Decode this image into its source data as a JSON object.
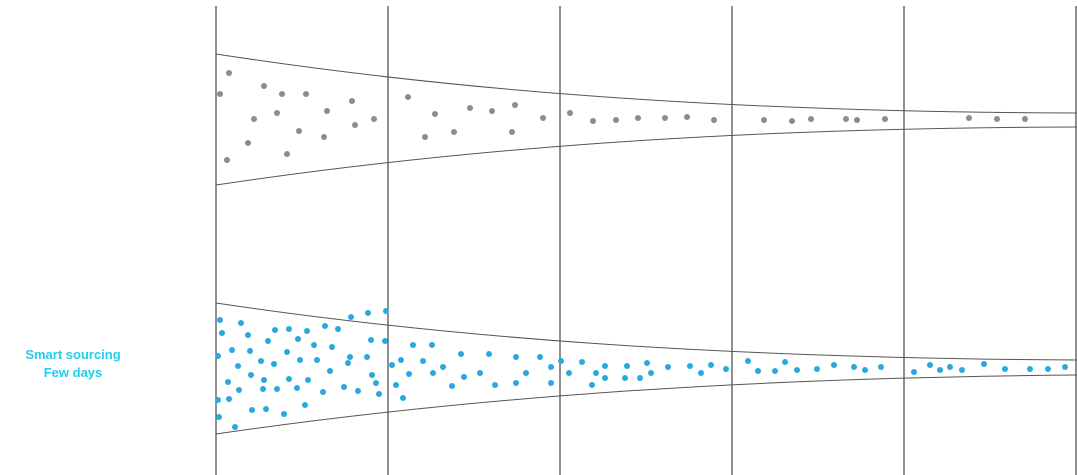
{
  "labels": {
    "bottom": {
      "line1": "Smart sourcing",
      "line2": "Few days",
      "color": "#23cdf0"
    }
  },
  "colors": {
    "grid_line": "#222222",
    "funnel_outline": "#555555",
    "top_dots": "#8c8c8c",
    "bottom_dots": "#29a9e0"
  },
  "stage_count": 5
}
